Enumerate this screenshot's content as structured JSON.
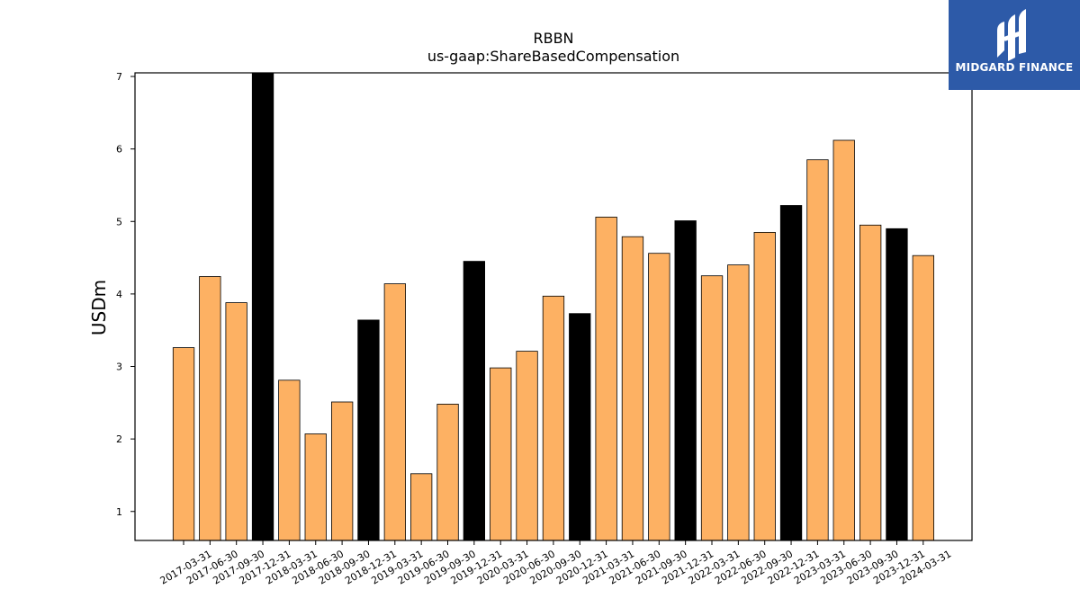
{
  "chart_data": {
    "type": "bar",
    "title": "RBBN",
    "subtitle": "us-gaap:ShareBasedCompensation",
    "ylabel": "USDm",
    "xlabel": "",
    "ylim": [
      0.6,
      7.05
    ],
    "yticks": [
      1,
      2,
      3,
      4,
      5,
      6,
      7
    ],
    "grid": false,
    "categories": [
      "2017-03-31",
      "2017-06-30",
      "2017-09-30",
      "2017-12-31",
      "2018-03-31",
      "2018-06-30",
      "2018-09-30",
      "2018-12-31",
      "2019-03-31",
      "2019-06-30",
      "2019-09-30",
      "2019-12-31",
      "2020-03-31",
      "2020-06-30",
      "2020-09-30",
      "2020-12-31",
      "2021-03-31",
      "2021-06-30",
      "2021-09-30",
      "2021-12-31",
      "2022-03-31",
      "2022-06-30",
      "2022-09-30",
      "2022-12-31",
      "2023-03-31",
      "2023-06-30",
      "2023-09-30",
      "2023-12-31",
      "2024-03-31"
    ],
    "values": [
      3.26,
      4.24,
      3.88,
      7.05,
      2.81,
      2.07,
      2.51,
      3.64,
      4.14,
      1.52,
      2.48,
      4.45,
      2.98,
      3.21,
      3.97,
      3.73,
      5.06,
      4.79,
      4.56,
      5.01,
      4.25,
      4.4,
      4.85,
      5.22,
      5.85,
      6.12,
      4.95,
      4.9,
      4.53
    ],
    "highlight": [
      false,
      false,
      false,
      true,
      false,
      false,
      false,
      true,
      false,
      false,
      false,
      true,
      false,
      false,
      false,
      true,
      false,
      false,
      false,
      true,
      false,
      false,
      false,
      true,
      false,
      false,
      false,
      true,
      false
    ],
    "colors": {
      "bar": "#fdb163",
      "highlight": "#000000",
      "edge": "#000000"
    }
  },
  "logo": {
    "text": "MIDGARD FINANCE",
    "background": "#2d5aa8"
  }
}
